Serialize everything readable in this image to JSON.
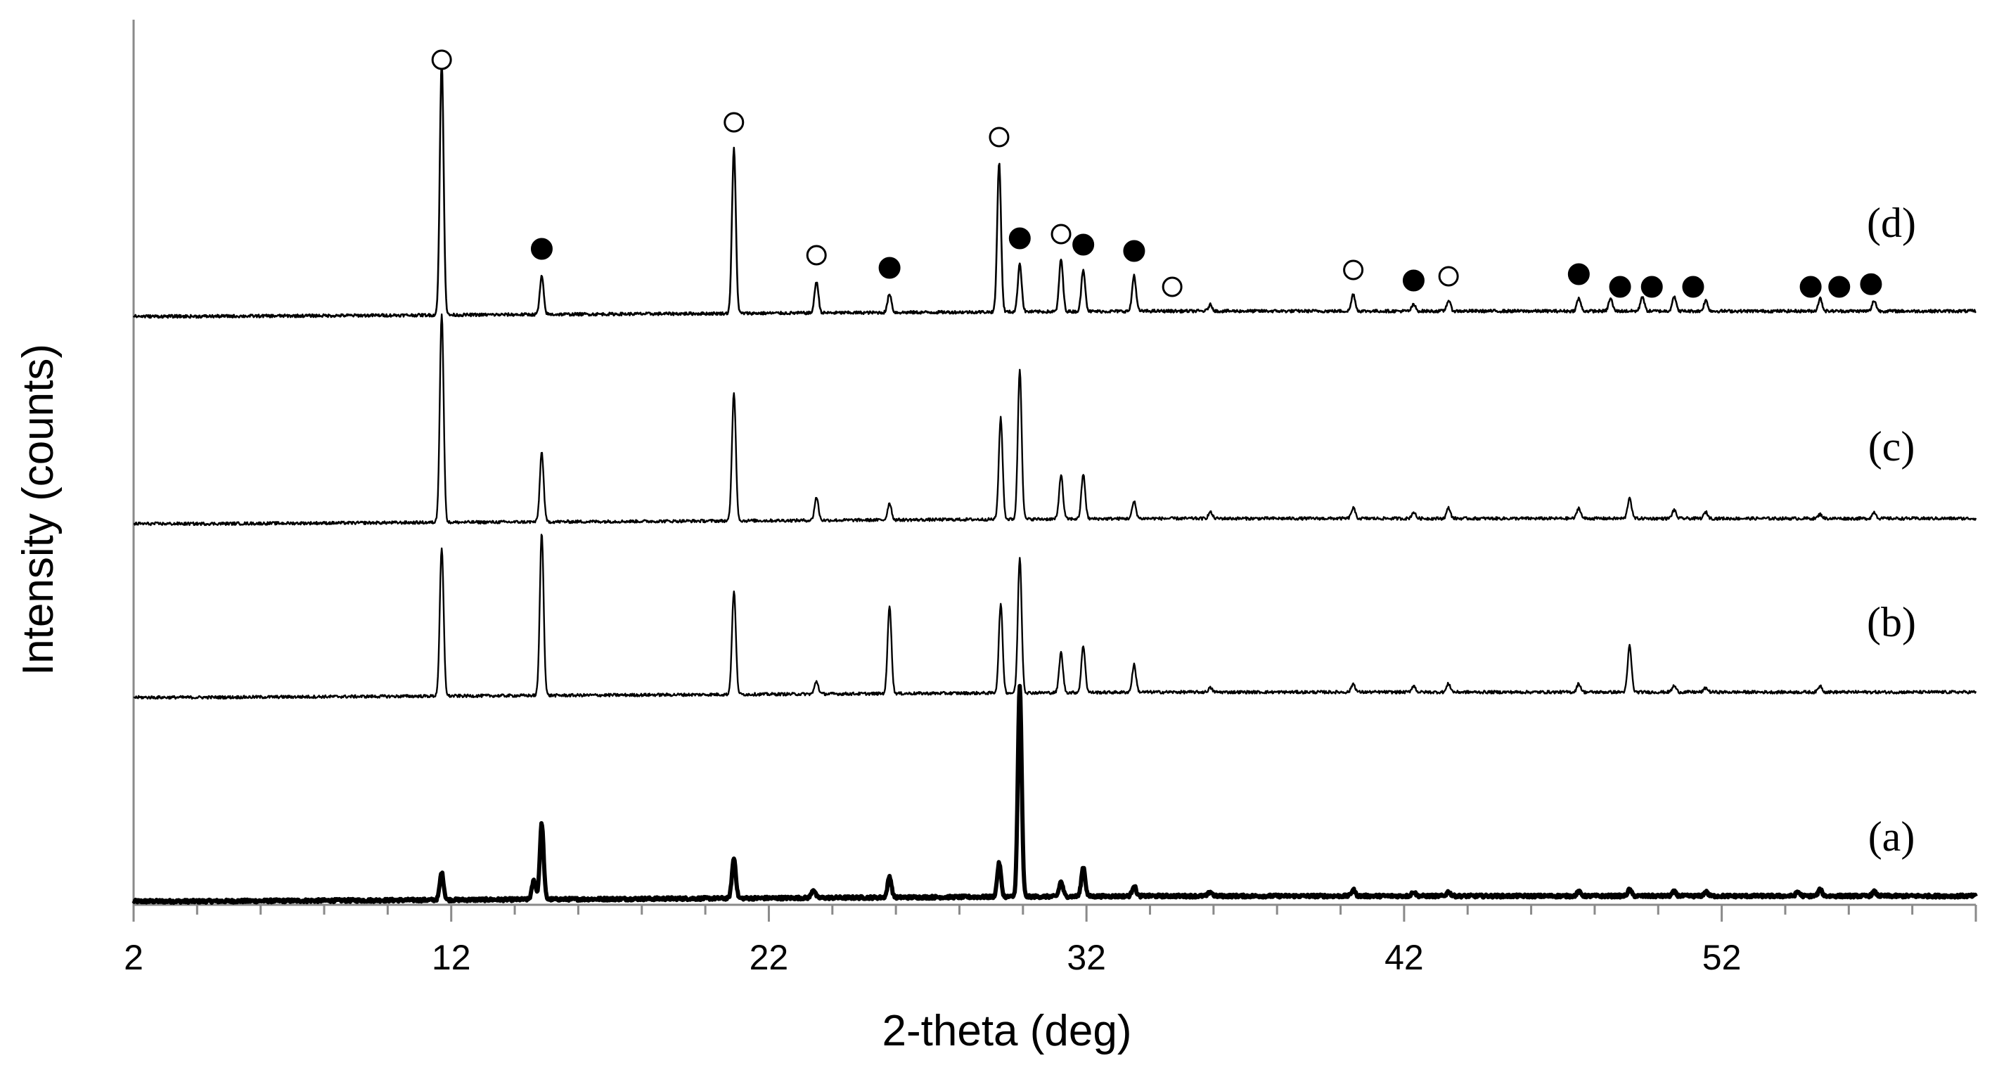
{
  "chart_data": {
    "type": "line",
    "xlabel": "2-theta (deg)",
    "ylabel": "Intensity (counts)",
    "xlim": [
      2,
      60
    ],
    "x_ticks": [
      2,
      12,
      22,
      32,
      42,
      52
    ],
    "x_tick_labels": [
      "2",
      "12",
      "22",
      "32",
      "42",
      "52"
    ],
    "y_ticks_shown": false,
    "grid": false,
    "legend": "none",
    "series": [
      {
        "name": "(a)",
        "peaks": [
          {
            "x": 11.7,
            "y": 0.13
          },
          {
            "x": 14.85,
            "y": 0.36
          },
          {
            "x": 14.6,
            "y": 0.09
          },
          {
            "x": 20.9,
            "y": 0.19
          },
          {
            "x": 23.4,
            "y": 0.04
          },
          {
            "x": 25.8,
            "y": 0.1
          },
          {
            "x": 29.25,
            "y": 0.16
          },
          {
            "x": 29.9,
            "y": 1.0
          },
          {
            "x": 31.2,
            "y": 0.07
          },
          {
            "x": 31.9,
            "y": 0.14
          },
          {
            "x": 33.5,
            "y": 0.05
          },
          {
            "x": 35.9,
            "y": 0.02
          },
          {
            "x": 40.4,
            "y": 0.03
          },
          {
            "x": 42.3,
            "y": 0.02
          },
          {
            "x": 43.4,
            "y": 0.02
          },
          {
            "x": 47.5,
            "y": 0.02
          },
          {
            "x": 49.1,
            "y": 0.03
          },
          {
            "x": 50.5,
            "y": 0.02
          },
          {
            "x": 51.5,
            "y": 0.02
          },
          {
            "x": 54.4,
            "y": 0.02
          },
          {
            "x": 55.1,
            "y": 0.03
          },
          {
            "x": 56.8,
            "y": 0.02
          }
        ]
      },
      {
        "name": "(b)",
        "peaks": [
          {
            "x": 11.7,
            "y": 0.7
          },
          {
            "x": 14.85,
            "y": 0.77
          },
          {
            "x": 20.9,
            "y": 0.49
          },
          {
            "x": 23.5,
            "y": 0.06
          },
          {
            "x": 25.8,
            "y": 0.42
          },
          {
            "x": 29.3,
            "y": 0.42
          },
          {
            "x": 29.9,
            "y": 0.64
          },
          {
            "x": 31.2,
            "y": 0.19
          },
          {
            "x": 31.9,
            "y": 0.22
          },
          {
            "x": 33.5,
            "y": 0.13
          },
          {
            "x": 35.9,
            "y": 0.02
          },
          {
            "x": 40.4,
            "y": 0.04
          },
          {
            "x": 42.3,
            "y": 0.03
          },
          {
            "x": 43.4,
            "y": 0.04
          },
          {
            "x": 47.5,
            "y": 0.04
          },
          {
            "x": 49.1,
            "y": 0.22
          },
          {
            "x": 50.5,
            "y": 0.03
          },
          {
            "x": 51.5,
            "y": 0.02
          },
          {
            "x": 55.1,
            "y": 0.03
          }
        ]
      },
      {
        "name": "(c)",
        "peaks": [
          {
            "x": 11.7,
            "y": 0.99
          },
          {
            "x": 14.85,
            "y": 0.33
          },
          {
            "x": 20.9,
            "y": 0.61
          },
          {
            "x": 23.5,
            "y": 0.11
          },
          {
            "x": 25.8,
            "y": 0.08
          },
          {
            "x": 29.3,
            "y": 0.48
          },
          {
            "x": 29.9,
            "y": 0.71
          },
          {
            "x": 31.2,
            "y": 0.21
          },
          {
            "x": 31.9,
            "y": 0.21
          },
          {
            "x": 33.5,
            "y": 0.08
          },
          {
            "x": 35.9,
            "y": 0.03
          },
          {
            "x": 40.4,
            "y": 0.05
          },
          {
            "x": 42.3,
            "y": 0.03
          },
          {
            "x": 43.4,
            "y": 0.05
          },
          {
            "x": 47.5,
            "y": 0.05
          },
          {
            "x": 49.1,
            "y": 0.1
          },
          {
            "x": 50.5,
            "y": 0.04
          },
          {
            "x": 51.5,
            "y": 0.03
          },
          {
            "x": 55.1,
            "y": 0.02
          },
          {
            "x": 56.8,
            "y": 0.03
          }
        ]
      },
      {
        "name": "(d)",
        "peaks": [
          {
            "x": 11.7,
            "y": 1.2
          },
          {
            "x": 14.85,
            "y": 0.18
          },
          {
            "x": 20.9,
            "y": 0.78
          },
          {
            "x": 23.5,
            "y": 0.15
          },
          {
            "x": 25.8,
            "y": 0.09
          },
          {
            "x": 29.25,
            "y": 0.71
          },
          {
            "x": 29.9,
            "y": 0.23
          },
          {
            "x": 31.2,
            "y": 0.25
          },
          {
            "x": 31.9,
            "y": 0.2
          },
          {
            "x": 33.5,
            "y": 0.17
          },
          {
            "x": 35.9,
            "y": 0.03
          },
          {
            "x": 40.4,
            "y": 0.08
          },
          {
            "x": 42.3,
            "y": 0.03
          },
          {
            "x": 43.4,
            "y": 0.05
          },
          {
            "x": 47.5,
            "y": 0.06
          },
          {
            "x": 48.5,
            "y": 0.06
          },
          {
            "x": 49.5,
            "y": 0.07
          },
          {
            "x": 50.5,
            "y": 0.07
          },
          {
            "x": 51.5,
            "y": 0.05
          },
          {
            "x": 55.1,
            "y": 0.06
          },
          {
            "x": 56.8,
            "y": 0.05
          }
        ]
      }
    ],
    "annotations": {
      "series": "(d)",
      "open_circle_x": [
        11.7,
        20.9,
        23.5,
        29.25,
        31.2,
        34.7,
        40.4,
        43.4
      ],
      "filled_circle_x": [
        14.85,
        25.8,
        29.9,
        31.9,
        33.5,
        42.3,
        47.5,
        48.8,
        49.8,
        51.1,
        54.8,
        55.7,
        56.7
      ]
    }
  }
}
